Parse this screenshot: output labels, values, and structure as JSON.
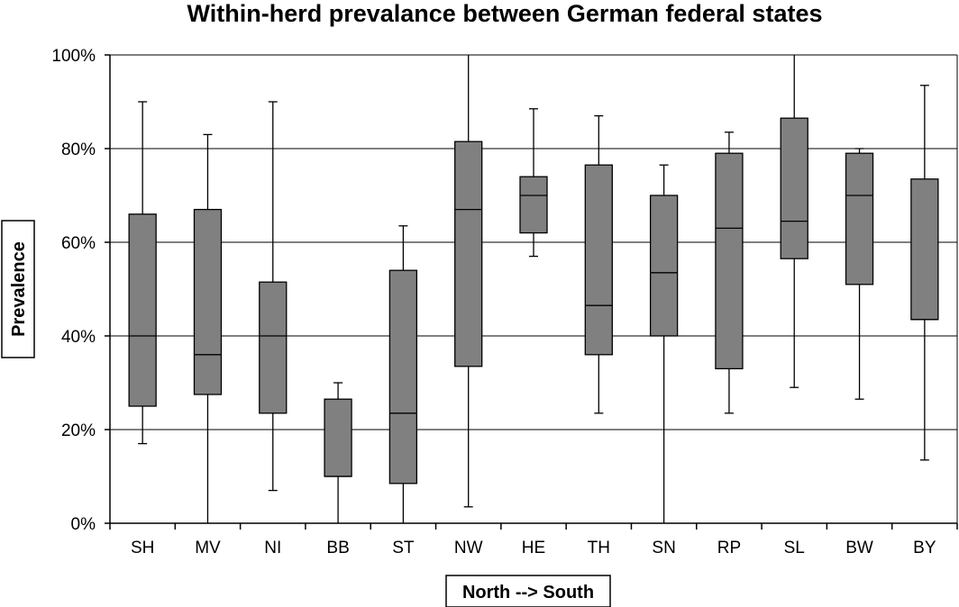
{
  "chart_data": {
    "type": "box",
    "title": "Within-herd prevalance between German federal states",
    "xlabel": "North --> South",
    "ylabel": "Prevalence",
    "ylim": [
      0,
      100
    ],
    "yticks": [
      0,
      20,
      40,
      60,
      80,
      100
    ],
    "ytick_labels": [
      "0%",
      "20%",
      "40%",
      "60%",
      "80%",
      "100%"
    ],
    "grid": true,
    "box_color": "#808080",
    "categories": [
      "SH",
      "MV",
      "NI",
      "BB",
      "ST",
      "NW",
      "HE",
      "TH",
      "SN",
      "RP",
      "SL",
      "BW",
      "BY"
    ],
    "boxes": [
      {
        "min": 17,
        "q1": 25,
        "median": 40,
        "q3": 66,
        "max": 90
      },
      {
        "min": 0,
        "q1": 27.5,
        "median": 36,
        "q3": 67,
        "max": 83
      },
      {
        "min": 7,
        "q1": 23.5,
        "median": 40,
        "q3": 51.5,
        "max": 90
      },
      {
        "min": 0,
        "q1": 10,
        "median": 10,
        "q3": 26.5,
        "max": 30
      },
      {
        "min": 0,
        "q1": 8.5,
        "median": 23.5,
        "q3": 54,
        "max": 63.5
      },
      {
        "min": 3.5,
        "q1": 33.5,
        "median": 67,
        "q3": 81.5,
        "max": 100
      },
      {
        "min": 57,
        "q1": 62,
        "median": 70,
        "q3": 74,
        "max": 88.5
      },
      {
        "min": 23.5,
        "q1": 36,
        "median": 46.5,
        "q3": 76.5,
        "max": 87
      },
      {
        "min": 0,
        "q1": 40,
        "median": 53.5,
        "q3": 70,
        "max": 76.5
      },
      {
        "min": 23.5,
        "q1": 33,
        "median": 63,
        "q3": 79,
        "max": 83.5
      },
      {
        "min": 29,
        "q1": 56.5,
        "median": 64.5,
        "q3": 86.5,
        "max": 100
      },
      {
        "min": 26.5,
        "q1": 51,
        "median": 70,
        "q3": 79,
        "max": 80
      },
      {
        "min": 13.5,
        "q1": 43.5,
        "median": 43.5,
        "q3": 73.5,
        "max": 93.5
      }
    ]
  }
}
